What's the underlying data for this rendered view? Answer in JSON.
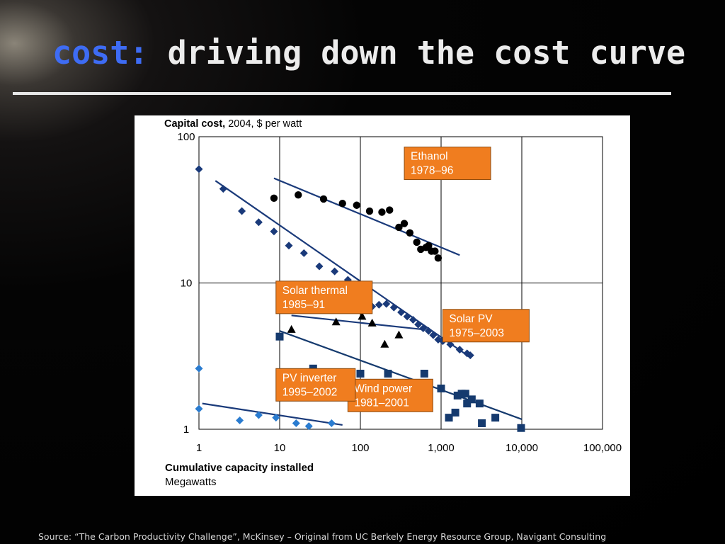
{
  "slide": {
    "title_keyword": "cost:",
    "title_rest": "driving down the cost curve",
    "source": "Source: “The Carbon Productivity Challenge”, McKinsey – Original from UC Berkely Energy Resource Group, Navigant Consulting"
  },
  "colors": {
    "title_keyword": "#3e6cf4",
    "label_box": "#f07d1f",
    "ethanol": "#000000",
    "solar_thermal": "#000000",
    "solar_pv": "#1a3a7a",
    "wind": "#153a6e",
    "pv_inverter": "#2a7cd0"
  },
  "chart_data": {
    "type": "scatter",
    "xscale": "log",
    "yscale": "log",
    "xlim": [
      1,
      100000
    ],
    "ylim": [
      1,
      100
    ],
    "grid": true,
    "ylabel_bold": "Capital cost,",
    "ylabel_rest": " 2004, $ per watt",
    "xlabel": "Cumulative capacity installed",
    "xlabel_unit": "Megawatts",
    "x_ticks": [
      {
        "v": 1,
        "label": "1"
      },
      {
        "v": 10,
        "label": "10"
      },
      {
        "v": 100,
        "label": "100"
      },
      {
        "v": 1000,
        "label": "1,000"
      },
      {
        "v": 10000,
        "label": "10,000"
      },
      {
        "v": 100000,
        "label": "100,000"
      }
    ],
    "y_ticks": [
      {
        "v": 1,
        "label": "1"
      },
      {
        "v": 10,
        "label": "10"
      },
      {
        "v": 100,
        "label": "100"
      }
    ],
    "series": [
      {
        "name": "Ethanol",
        "label_lines": [
          "Ethanol",
          "1978–96"
        ],
        "marker": "circle",
        "points": [
          [
            8.5,
            38
          ],
          [
            17,
            40
          ],
          [
            35,
            37.5
          ],
          [
            60,
            35
          ],
          [
            90,
            34
          ],
          [
            130,
            31
          ],
          [
            185,
            30.5
          ],
          [
            230,
            31.5
          ],
          [
            300,
            24
          ],
          [
            350,
            25.5
          ],
          [
            410,
            22
          ],
          [
            500,
            19
          ],
          [
            560,
            17
          ],
          [
            650,
            17.5
          ],
          [
            700,
            18
          ],
          [
            760,
            16.5
          ],
          [
            840,
            16.5
          ],
          [
            920,
            14.8
          ]
        ],
        "trend": [
          [
            8.5,
            52
          ],
          [
            1700,
            15.5
          ]
        ]
      },
      {
        "name": "Solar PV",
        "label_lines": [
          "Solar PV",
          "1975–2003"
        ],
        "marker": "diamond",
        "points": [
          [
            1,
            60
          ],
          [
            2,
            44
          ],
          [
            3.4,
            31
          ],
          [
            5.5,
            26
          ],
          [
            8.5,
            22.5
          ],
          [
            13,
            18
          ],
          [
            20,
            16
          ],
          [
            31,
            13
          ],
          [
            48,
            12
          ],
          [
            70,
            10.5
          ],
          [
            95,
            8.7
          ],
          [
            115,
            7.3
          ],
          [
            140,
            6.9
          ],
          [
            170,
            7.1
          ],
          [
            210,
            7.2
          ],
          [
            260,
            6.8
          ],
          [
            320,
            6.3
          ],
          [
            380,
            5.9
          ],
          [
            450,
            5.6
          ],
          [
            520,
            5.2
          ],
          [
            600,
            4.9
          ],
          [
            700,
            4.7
          ],
          [
            800,
            4.4
          ],
          [
            920,
            4.1
          ],
          [
            1050,
            4
          ],
          [
            1300,
            3.8
          ],
          [
            1700,
            3.5
          ],
          [
            2100,
            3.3
          ],
          [
            2300,
            3.2
          ]
        ],
        "trend": [
          [
            1.6,
            50
          ],
          [
            2300,
            3.1
          ]
        ]
      },
      {
        "name": "Solar thermal",
        "label_lines": [
          "Solar thermal",
          "1985–91"
        ],
        "marker": "triangle",
        "points": [
          [
            14,
            4.8
          ],
          [
            50,
            5.4
          ],
          [
            105,
            5.9
          ],
          [
            140,
            5.3
          ],
          [
            200,
            3.8
          ],
          [
            300,
            4.4
          ]
        ],
        "trend": [
          [
            14,
            6
          ],
          [
            620,
            4.8
          ]
        ]
      },
      {
        "name": "Wind power",
        "label_lines": [
          "Wind power",
          "1981–2001"
        ],
        "marker": "square",
        "points": [
          [
            10,
            4.3
          ],
          [
            26,
            2.6
          ],
          [
            100,
            2.4
          ],
          [
            220,
            2.4
          ],
          [
            620,
            2.4
          ],
          [
            1000,
            1.9
          ],
          [
            1250,
            1.2
          ],
          [
            1500,
            1.3
          ],
          [
            1600,
            1.7
          ],
          [
            1800,
            1.75
          ],
          [
            2000,
            1.75
          ],
          [
            2100,
            1.5
          ],
          [
            2400,
            1.6
          ],
          [
            3000,
            1.5
          ],
          [
            3200,
            1.1
          ],
          [
            4700,
            1.2
          ],
          [
            9800,
            1.02
          ]
        ],
        "trend": [
          [
            10,
            4.7
          ],
          [
            10000,
            1.17
          ]
        ]
      },
      {
        "name": "PV inverter",
        "label_lines": [
          "PV inverter",
          "1995–2002"
        ],
        "marker": "diamond",
        "points": [
          [
            1,
            2.6
          ],
          [
            1,
            1.38
          ],
          [
            3.2,
            1.15
          ],
          [
            5.5,
            1.25
          ],
          [
            9,
            1.2
          ],
          [
            16,
            1.1
          ],
          [
            23,
            1.05
          ],
          [
            44,
            1.1
          ]
        ],
        "trend": [
          [
            1.1,
            1.5
          ],
          [
            60,
            1.07
          ]
        ]
      }
    ]
  }
}
